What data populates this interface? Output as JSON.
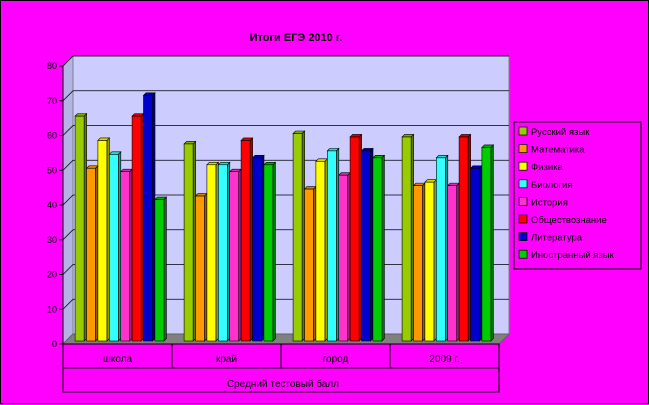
{
  "chart_data": {
    "type": "bar",
    "title": "Итоги ЕГЭ 2010 г.",
    "xlabel": "Средний тестовый балл",
    "ylabel": "",
    "ylim": [
      0,
      80
    ],
    "yticks": [
      0,
      10,
      20,
      30,
      40,
      50,
      60,
      70,
      80
    ],
    "categories": [
      "школа",
      "край",
      "город",
      "2009 г."
    ],
    "series": [
      {
        "name": "Русский язык",
        "color": "#99cc00",
        "values": [
          65,
          57,
          60,
          59
        ]
      },
      {
        "name": "Математика",
        "color": "#ff9900",
        "values": [
          50,
          42,
          44,
          45
        ]
      },
      {
        "name": "Физика",
        "color": "#ffff00",
        "values": [
          58,
          51,
          52,
          46
        ]
      },
      {
        "name": "Биология",
        "color": "#33ffff",
        "values": [
          54,
          51,
          55,
          53
        ]
      },
      {
        "name": "История",
        "color": "#ff33cc",
        "values": [
          49,
          49,
          48,
          45
        ]
      },
      {
        "name": "Обществознание",
        "color": "#ff0000",
        "values": [
          65,
          58,
          59,
          59
        ]
      },
      {
        "name": "Литература",
        "color": "#0000cc",
        "values": [
          71,
          53,
          55,
          50
        ]
      },
      {
        "name": "Иностранный язык",
        "color": "#00cc00",
        "values": [
          41,
          51,
          53,
          56
        ]
      }
    ],
    "grid": true,
    "legend_position": "right",
    "plot_background": "#ccccff",
    "chart_background": "#ff00ff"
  }
}
